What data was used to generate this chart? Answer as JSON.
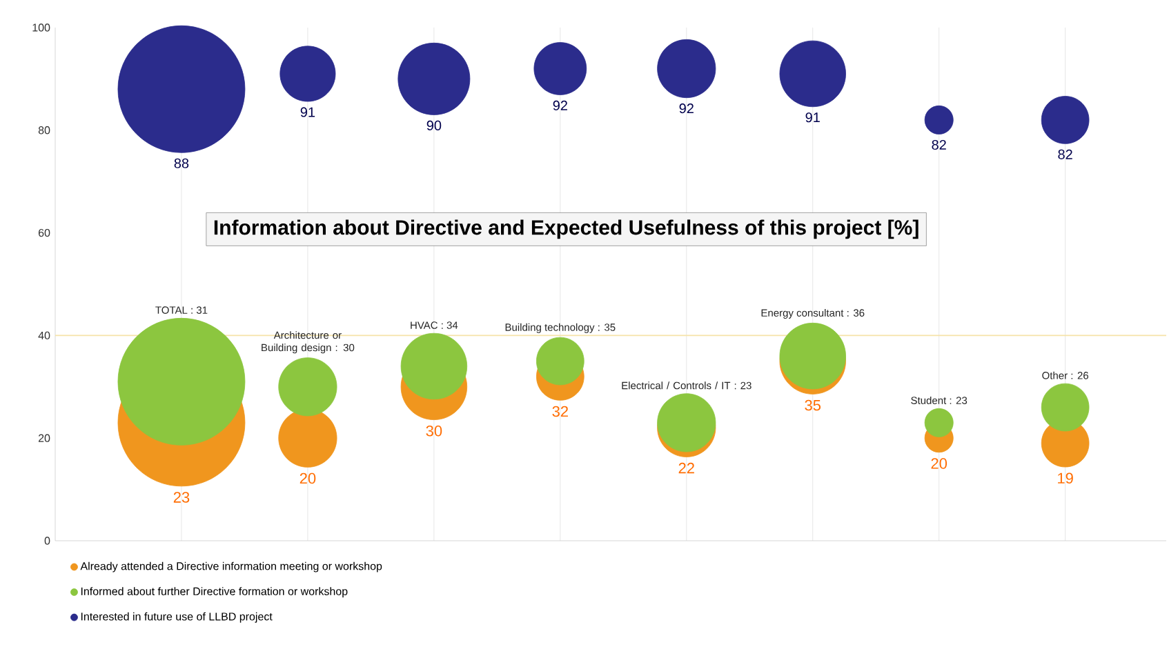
{
  "chart_data": {
    "type": "bubble",
    "title": "Information about Directive and Expected Usefulness of this project [%]",
    "categories": [
      null,
      null,
      null,
      null,
      null,
      null,
      null,
      null
    ],
    "series": [
      {
        "name": "Already attended a Directive information meeting or workshop",
        "color": "#f0961e",
        "values": [
          23,
          20,
          30,
          32,
          22,
          35,
          20,
          19
        ],
        "sizes": [
          1,
          0.21,
          0.27,
          0.14,
          0.21,
          0.27,
          0.05,
          0.14
        ],
        "value_labels": [
          "23",
          "20",
          "30",
          "32",
          "22",
          "35",
          "20",
          "19"
        ]
      },
      {
        "name": "Informed about further Directive formation or workshop",
        "color": "#8cc63f",
        "values": [
          31,
          30,
          34,
          35,
          23,
          36,
          23,
          26
        ],
        "sizes": [
          1,
          0.21,
          0.27,
          0.14,
          0.21,
          0.27,
          0.05,
          0.14
        ],
        "value_labels": [
          "TOTAL : 31",
          "Architecture or Building design : 30",
          "HVAC : 34",
          "Building technology : 35",
          "Electrical / Controls / IT : 23",
          "Energy consultant : 36",
          "Student : 23",
          "Other : 26"
        ]
      },
      {
        "name": "Interested in future use of LLBD project",
        "color": "#2b2c8c",
        "values": [
          88,
          91,
          90,
          92,
          92,
          91,
          82,
          82
        ],
        "sizes": [
          1,
          0.19,
          0.32,
          0.17,
          0.21,
          0.27,
          0.05,
          0.14
        ],
        "value_labels": [
          "88",
          "91",
          "90",
          "92",
          "92",
          "91",
          "82",
          "82"
        ]
      }
    ],
    "ylim": [
      0,
      100
    ],
    "yticks": [
      0,
      20,
      40,
      60,
      80,
      100
    ],
    "grid": "x",
    "tick_labels": "y",
    "legend": "bottom",
    "ref_lines": [
      {
        "axis": "y",
        "value": 40,
        "color": "#f5e3a8"
      }
    ]
  }
}
